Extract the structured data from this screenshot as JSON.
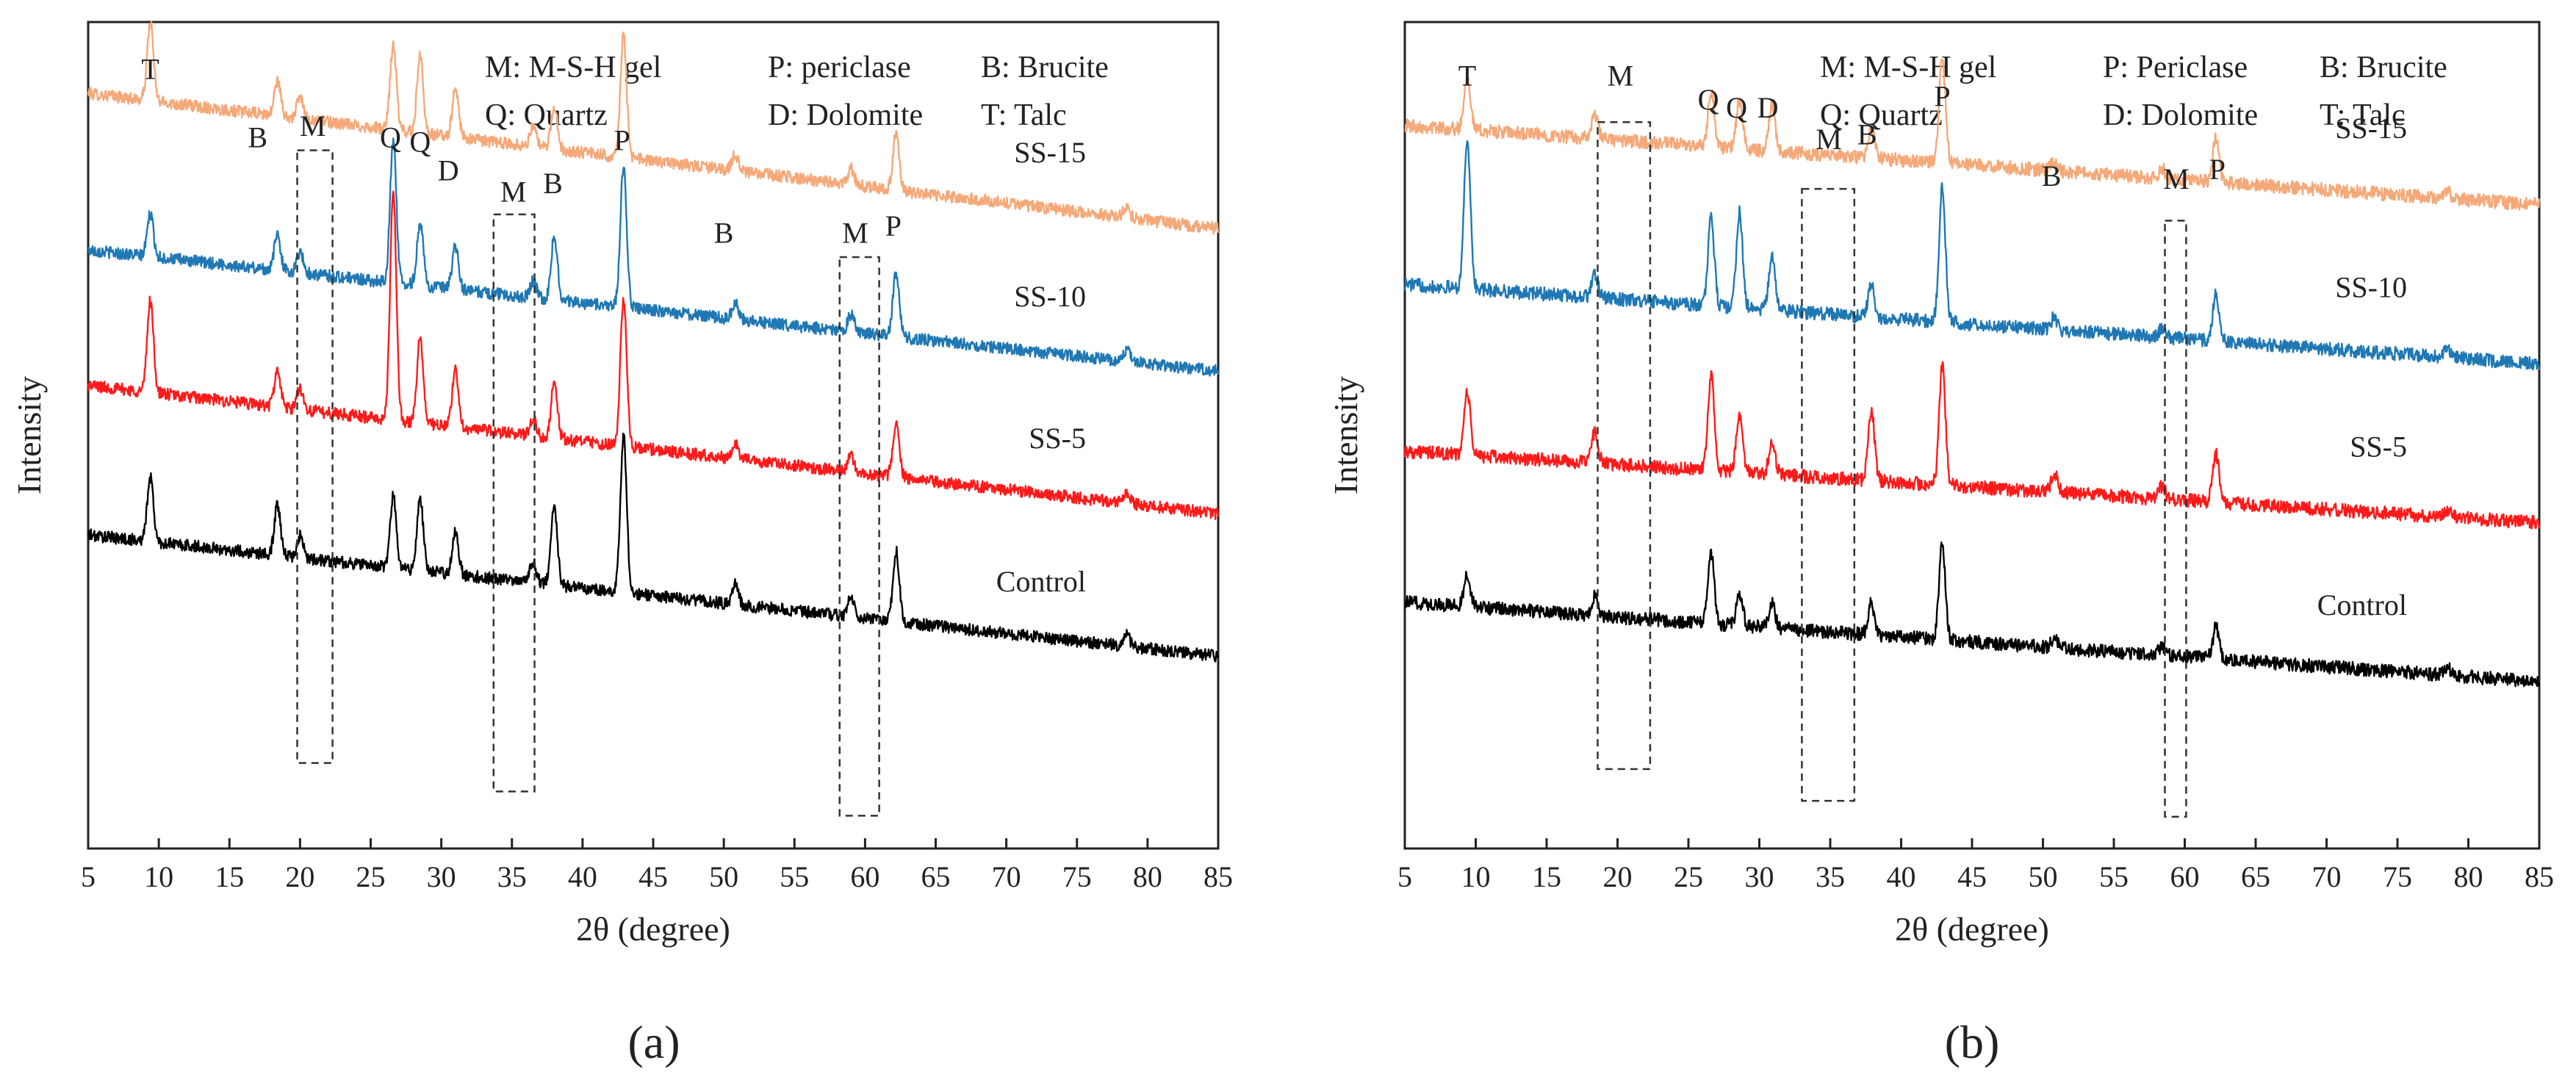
{
  "chart_data": [
    {
      "type": "line",
      "panel_label": "(a)",
      "xlabel": "2θ (degree)",
      "ylabel": "Intensity",
      "xlim": [
        5,
        85
      ],
      "xticks": [
        5,
        10,
        15,
        20,
        25,
        30,
        35,
        40,
        45,
        50,
        55,
        60,
        65,
        70,
        75,
        80,
        85
      ],
      "y_ticks_shown": false,
      "legend_lines": [
        [
          "M: M-S-H gel",
          "P: periclase",
          "B: Brucite"
        ],
        [
          "Q: Quartz",
          "D: Dolomite",
          "T: Talc"
        ]
      ],
      "legend_placement": "top-right",
      "series": [
        {
          "name": "SS-15",
          "color": "#f5a878",
          "offset": 3.0,
          "start": 0.95,
          "end": 0.0,
          "peaks": [
            [
              9.4,
              0.55
            ],
            [
              18.4,
              0.25
            ],
            [
              20.0,
              0.15
            ],
            [
              26.6,
              0.6
            ],
            [
              28.5,
              0.55
            ],
            [
              31.0,
              0.35
            ],
            [
              36.5,
              0.15
            ],
            [
              38.0,
              0.3
            ],
            [
              42.9,
              0.85
            ],
            [
              50.8,
              0.12
            ],
            [
              59.0,
              0.12
            ],
            [
              62.2,
              0.4
            ],
            [
              78.5,
              0.08
            ]
          ]
        },
        {
          "name": "SS-10",
          "color": "#1f78b4",
          "offset": 2.0,
          "start": 0.85,
          "end": 0.0,
          "peaks": [
            [
              9.4,
              0.3
            ],
            [
              18.4,
              0.25
            ],
            [
              20.0,
              0.15
            ],
            [
              26.6,
              1.0
            ],
            [
              28.5,
              0.45
            ],
            [
              31.0,
              0.3
            ],
            [
              36.5,
              0.12
            ],
            [
              38.0,
              0.45
            ],
            [
              42.9,
              1.0
            ],
            [
              50.8,
              0.12
            ],
            [
              59.0,
              0.12
            ],
            [
              62.2,
              0.45
            ],
            [
              78.5,
              0.08
            ]
          ]
        },
        {
          "name": "SS-5",
          "color": "#ff1a1a",
          "offset": 1.0,
          "start": 0.9,
          "end": 0.0,
          "peaks": [
            [
              9.4,
              0.65
            ],
            [
              18.4,
              0.25
            ],
            [
              20.0,
              0.15
            ],
            [
              26.6,
              1.6
            ],
            [
              28.5,
              0.6
            ],
            [
              31.0,
              0.4
            ],
            [
              36.5,
              0.12
            ],
            [
              38.0,
              0.4
            ],
            [
              42.9,
              1.05
            ],
            [
              50.8,
              0.12
            ],
            [
              59.0,
              0.12
            ],
            [
              62.2,
              0.4
            ],
            [
              78.5,
              0.08
            ]
          ]
        },
        {
          "name": "Control",
          "color": "#000000",
          "offset": 0.0,
          "start": 0.85,
          "end": 0.0,
          "peaks": [
            [
              9.4,
              0.45
            ],
            [
              18.4,
              0.35
            ],
            [
              20.0,
              0.15
            ],
            [
              26.6,
              0.5
            ],
            [
              28.5,
              0.5
            ],
            [
              31.0,
              0.3
            ],
            [
              36.5,
              0.15
            ],
            [
              38.0,
              0.55
            ],
            [
              42.9,
              1.1
            ],
            [
              50.8,
              0.15
            ],
            [
              59.0,
              0.15
            ],
            [
              62.2,
              0.5
            ],
            [
              78.5,
              0.1
            ]
          ]
        }
      ],
      "peak_labels": [
        {
          "text": "T",
          "x": 9.4,
          "level": 4.05
        },
        {
          "text": "B",
          "x": 17.0,
          "level": 3.57
        },
        {
          "text": "M",
          "x": 20.9,
          "level": 3.65
        },
        {
          "text": "Q",
          "x": 26.4,
          "level": 3.57
        },
        {
          "text": "Q",
          "x": 28.5,
          "level": 3.54
        },
        {
          "text": "D",
          "x": 30.5,
          "level": 3.34
        },
        {
          "text": "M",
          "x": 35.1,
          "level": 3.19
        },
        {
          "text": "B",
          "x": 37.9,
          "level": 3.25
        },
        {
          "text": "P",
          "x": 42.8,
          "level": 3.55
        },
        {
          "text": "B",
          "x": 50.0,
          "level": 2.9
        },
        {
          "text": "M",
          "x": 59.3,
          "level": 2.9
        },
        {
          "text": "P",
          "x": 62.0,
          "level": 2.95
        }
      ],
      "dashed_boxes": [
        {
          "x0": 19.8,
          "x1": 22.3,
          "y0": -0.75,
          "y1": 3.55
        },
        {
          "x0": 33.7,
          "x1": 36.6,
          "y0": -0.95,
          "y1": 3.1
        },
        {
          "x0": 58.2,
          "x1": 61.0,
          "y0": -1.12,
          "y1": 2.8
        }
      ]
    },
    {
      "type": "line",
      "panel_label": "(b)",
      "xlabel": "2θ (degree)",
      "ylabel": "Intensity",
      "xlim": [
        5,
        85
      ],
      "xticks": [
        5,
        10,
        15,
        20,
        25,
        30,
        35,
        40,
        45,
        50,
        55,
        60,
        65,
        70,
        75,
        80,
        85
      ],
      "y_ticks_shown": false,
      "legend_lines": [
        [
          "M: M-S-H gel",
          "P: Periclase",
          "B: Brucite"
        ],
        [
          "Q: Quartz",
          "D: Dolomite",
          "T: Talc"
        ]
      ],
      "legend_placement": "top-right",
      "series": [
        {
          "name": "SS-15",
          "color": "#f5a878",
          "offset": 3.0,
          "start": 0.5,
          "end": 0.0,
          "peaks": [
            [
              9.4,
              0.35
            ],
            [
              18.4,
              0.15
            ],
            [
              26.6,
              0.35
            ],
            [
              28.6,
              0.3
            ],
            [
              30.9,
              0.3
            ],
            [
              37.9,
              0.2
            ],
            [
              42.9,
              0.65
            ],
            [
              50.8,
              0.06
            ],
            [
              58.4,
              0.06
            ],
            [
              62.2,
              0.28
            ],
            [
              78.5,
              0.05
            ]
          ]
        },
        {
          "name": "SS-10",
          "color": "#1f78b4",
          "offset": 2.0,
          "start": 0.5,
          "end": 0.0,
          "peaks": [
            [
              9.4,
              0.95
            ],
            [
              18.4,
              0.15
            ],
            [
              26.6,
              0.55
            ],
            [
              28.6,
              0.6
            ],
            [
              30.9,
              0.35
            ],
            [
              37.9,
              0.2
            ],
            [
              42.9,
              0.85
            ],
            [
              50.8,
              0.08
            ],
            [
              58.4,
              0.06
            ],
            [
              62.2,
              0.3
            ],
            [
              78.5,
              0.05
            ]
          ]
        },
        {
          "name": "SS-5",
          "color": "#ff1a1a",
          "offset": 1.0,
          "start": 0.45,
          "end": 0.0,
          "peaks": [
            [
              9.4,
              0.4
            ],
            [
              18.4,
              0.2
            ],
            [
              26.6,
              0.6
            ],
            [
              28.6,
              0.35
            ],
            [
              30.9,
              0.2
            ],
            [
              37.9,
              0.45
            ],
            [
              42.9,
              0.75
            ],
            [
              50.8,
              0.12
            ],
            [
              58.4,
              0.08
            ],
            [
              62.2,
              0.3
            ],
            [
              78.5,
              0.05
            ]
          ]
        },
        {
          "name": "Control",
          "color": "#000000",
          "offset": 0.0,
          "start": 0.5,
          "end": 0.0,
          "peaks": [
            [
              9.4,
              0.2
            ],
            [
              18.4,
              0.12
            ],
            [
              26.6,
              0.45
            ],
            [
              28.6,
              0.2
            ],
            [
              30.9,
              0.15
            ],
            [
              37.9,
              0.2
            ],
            [
              42.9,
              0.6
            ],
            [
              50.8,
              0.06
            ],
            [
              58.4,
              0.06
            ],
            [
              62.2,
              0.2
            ],
            [
              78.5,
              0.05
            ]
          ]
        }
      ],
      "peak_labels": [
        {
          "text": "T",
          "x": 9.4,
          "level": 3.75
        },
        {
          "text": "M",
          "x": 20.2,
          "level": 3.75
        },
        {
          "text": "Q",
          "x": 26.4,
          "level": 3.6
        },
        {
          "text": "Q",
          "x": 28.4,
          "level": 3.55
        },
        {
          "text": "D",
          "x": 30.6,
          "level": 3.55
        },
        {
          "text": "M",
          "x": 34.9,
          "level": 3.35
        },
        {
          "text": "B",
          "x": 37.6,
          "level": 3.38
        },
        {
          "text": "P",
          "x": 42.9,
          "level": 3.62
        },
        {
          "text": "B",
          "x": 50.6,
          "level": 3.12
        },
        {
          "text": "M",
          "x": 59.4,
          "level": 3.1
        },
        {
          "text": "P",
          "x": 62.3,
          "level": 3.16
        }
      ],
      "dashed_boxes": [
        {
          "x0": 18.6,
          "x1": 22.3,
          "y0": -0.55,
          "y1": 3.52
        },
        {
          "x0": 33.0,
          "x1": 36.7,
          "y0": -0.75,
          "y1": 3.1
        },
        {
          "x0": 58.6,
          "x1": 60.1,
          "y0": -0.85,
          "y1": 2.9
        }
      ]
    }
  ]
}
